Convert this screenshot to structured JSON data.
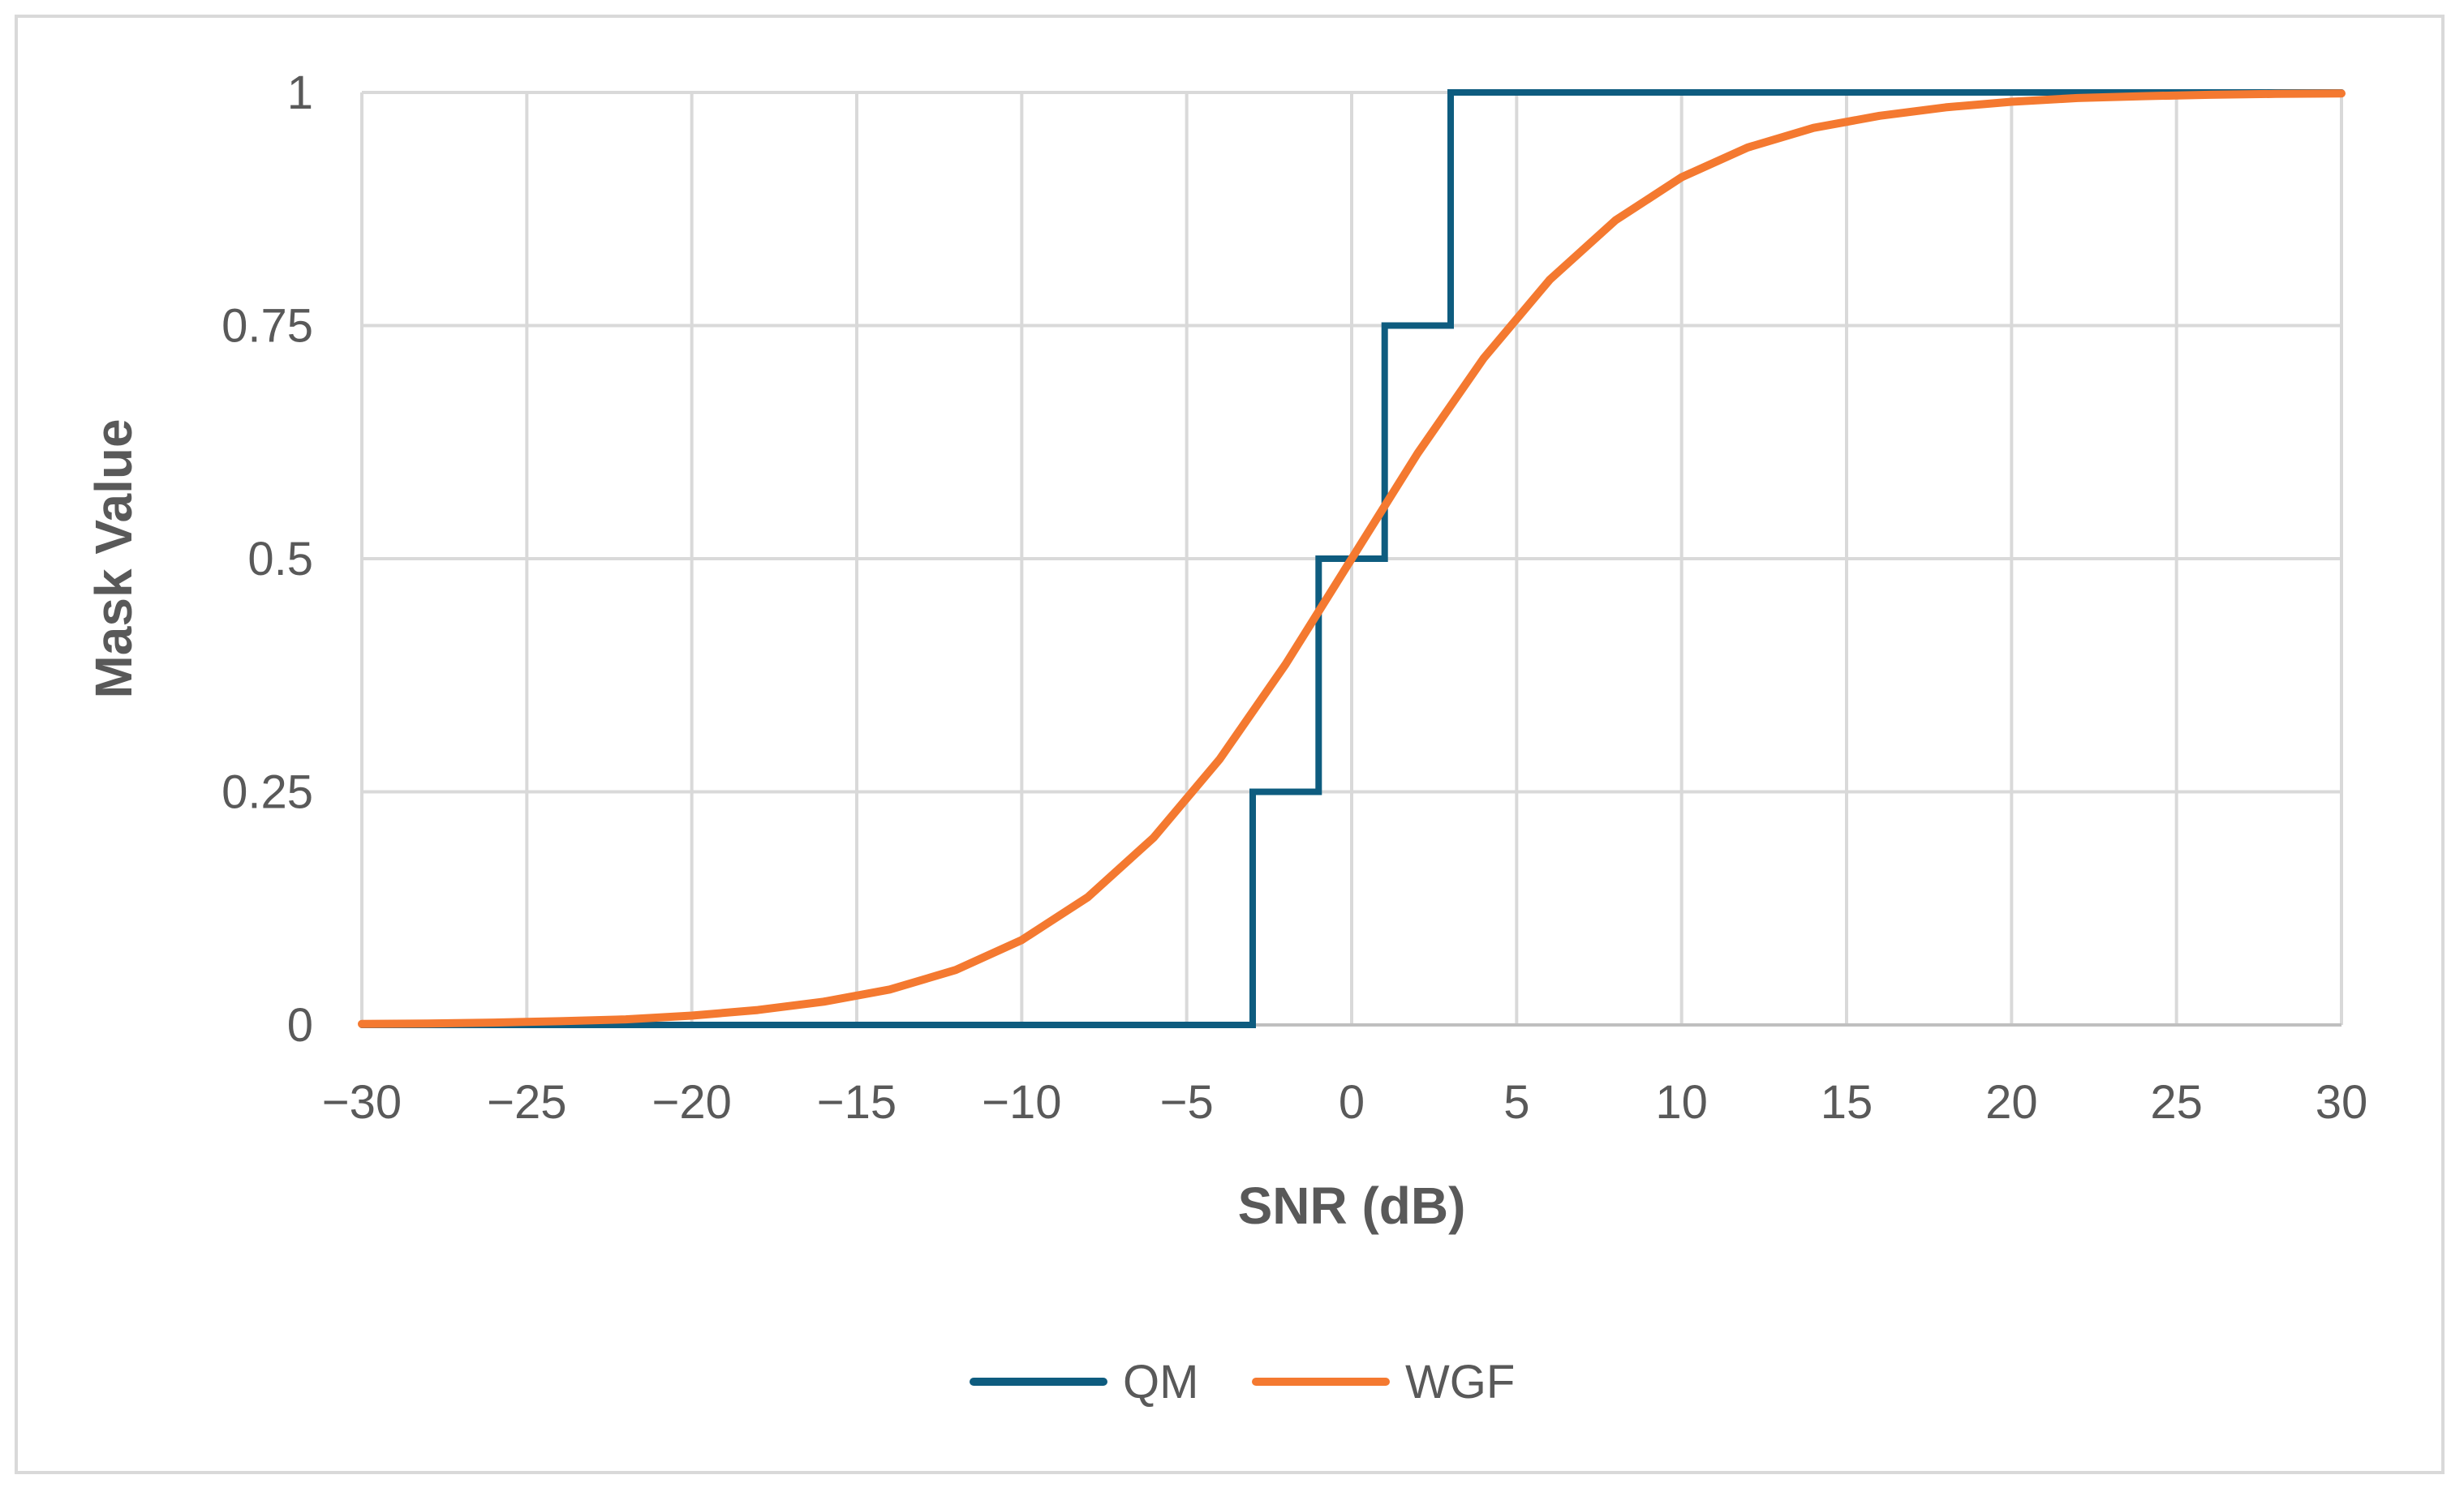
{
  "chart_data": {
    "type": "line",
    "xlabel": "SNR (dB)",
    "ylabel": "Mask Value",
    "xlim": [
      -30,
      30
    ],
    "ylim": [
      0,
      1
    ],
    "x_ticks": [
      -30,
      -25,
      -20,
      -15,
      -10,
      -5,
      0,
      5,
      10,
      15,
      20,
      25,
      30
    ],
    "x_tick_labels": [
      "−30",
      "−25",
      "−20",
      "−15",
      "−10",
      "−5",
      "0",
      "5",
      "10",
      "15",
      "20",
      "25",
      "30"
    ],
    "y_ticks": [
      0,
      0.25,
      0.5,
      0.75,
      1
    ],
    "y_tick_labels": [
      "0",
      "0.25",
      "0.5",
      "0.75",
      "1"
    ],
    "grid": true,
    "legend_position": "bottom",
    "series": [
      {
        "name": "QM",
        "color": "#0e5c7f",
        "step": true,
        "x": [
          -30,
          -3,
          -3,
          -1,
          -1,
          1,
          1,
          3,
          3,
          30
        ],
        "y": [
          0,
          0,
          0.25,
          0.25,
          0.5,
          0.5,
          0.75,
          0.75,
          1,
          1
        ]
      },
      {
        "name": "WGF",
        "color": "#f47930",
        "step": false,
        "x": [
          -30,
          -28,
          -26,
          -24,
          -22,
          -20,
          -18,
          -16,
          -14,
          -12,
          -10,
          -8,
          -6,
          -4,
          -2,
          0,
          2,
          4,
          6,
          8,
          10,
          12,
          14,
          16,
          18,
          20,
          22,
          24,
          26,
          28,
          30
        ],
        "y": [
          0.001,
          0.0016,
          0.0025,
          0.004,
          0.006,
          0.01,
          0.016,
          0.025,
          0.038,
          0.059,
          0.091,
          0.137,
          0.201,
          0.285,
          0.387,
          0.5,
          0.613,
          0.715,
          0.799,
          0.863,
          0.909,
          0.941,
          0.962,
          0.975,
          0.984,
          0.99,
          0.994,
          0.996,
          0.9975,
          0.9984,
          0.999
        ]
      }
    ]
  }
}
